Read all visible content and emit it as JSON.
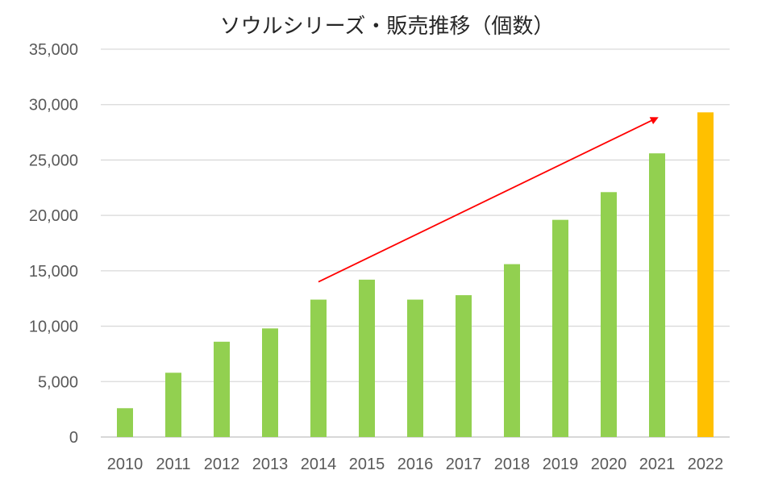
{
  "chart_data": {
    "type": "bar",
    "title": "ソウルシリーズ・販売推移（個数）",
    "categories": [
      "2010",
      "2011",
      "2012",
      "2013",
      "2014",
      "2015",
      "2016",
      "2017",
      "2018",
      "2019",
      "2020",
      "2021",
      "2022"
    ],
    "values": [
      2600,
      5800,
      8600,
      9800,
      12400,
      14200,
      12400,
      12800,
      15600,
      19600,
      22100,
      25600,
      29300
    ],
    "bar_colors": [
      "#92d050",
      "#92d050",
      "#92d050",
      "#92d050",
      "#92d050",
      "#92d050",
      "#92d050",
      "#92d050",
      "#92d050",
      "#92d050",
      "#92d050",
      "#92d050",
      "#ffc000"
    ],
    "yticks": [
      0,
      5000,
      10000,
      15000,
      20000,
      25000,
      30000,
      35000
    ],
    "ytick_labels": [
      "0",
      "5,000",
      "10,000",
      "15,000",
      "20,000",
      "25,000",
      "30,000",
      "35,000"
    ],
    "ylim": [
      0,
      35000
    ],
    "grid": true,
    "xlabel": "",
    "ylabel": "",
    "annotation": {
      "type": "arrow",
      "color": "#ff0000",
      "from": {
        "category": "2014",
        "value": 14000
      },
      "to": {
        "category": "2021",
        "value": 28800
      }
    }
  }
}
